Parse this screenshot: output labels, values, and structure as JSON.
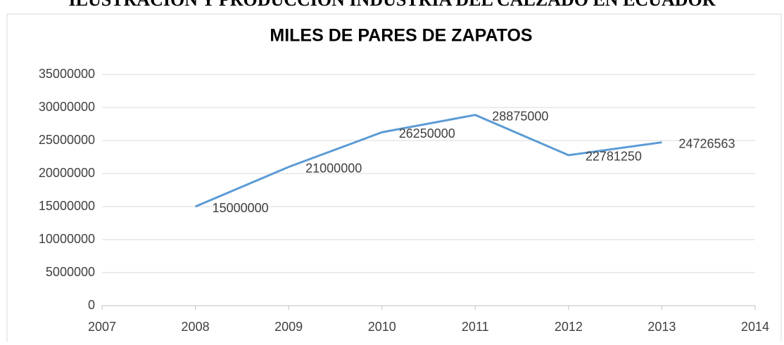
{
  "caption": "ILUSTRACIÓN Y PRODUCCIÓN INDUSTRIA DEL CALZADO EN ECUADOR",
  "chart_data": {
    "type": "line",
    "title": "MILES DE PARES DE ZAPATOS",
    "x": [
      2008,
      2009,
      2010,
      2011,
      2012,
      2013
    ],
    "values": [
      15000000,
      21000000,
      26250000,
      28875000,
      22781250,
      24726563
    ],
    "color": "#5b9bd5",
    "xlim": [
      2007,
      2014
    ],
    "xticks": [
      2007,
      2008,
      2009,
      2010,
      2011,
      2012,
      2013,
      2014
    ],
    "ylim": [
      0,
      35000000
    ],
    "yticks": [
      0,
      5000000,
      10000000,
      15000000,
      20000000,
      25000000,
      30000000,
      35000000
    ],
    "grid": true,
    "data_labels": true
  }
}
